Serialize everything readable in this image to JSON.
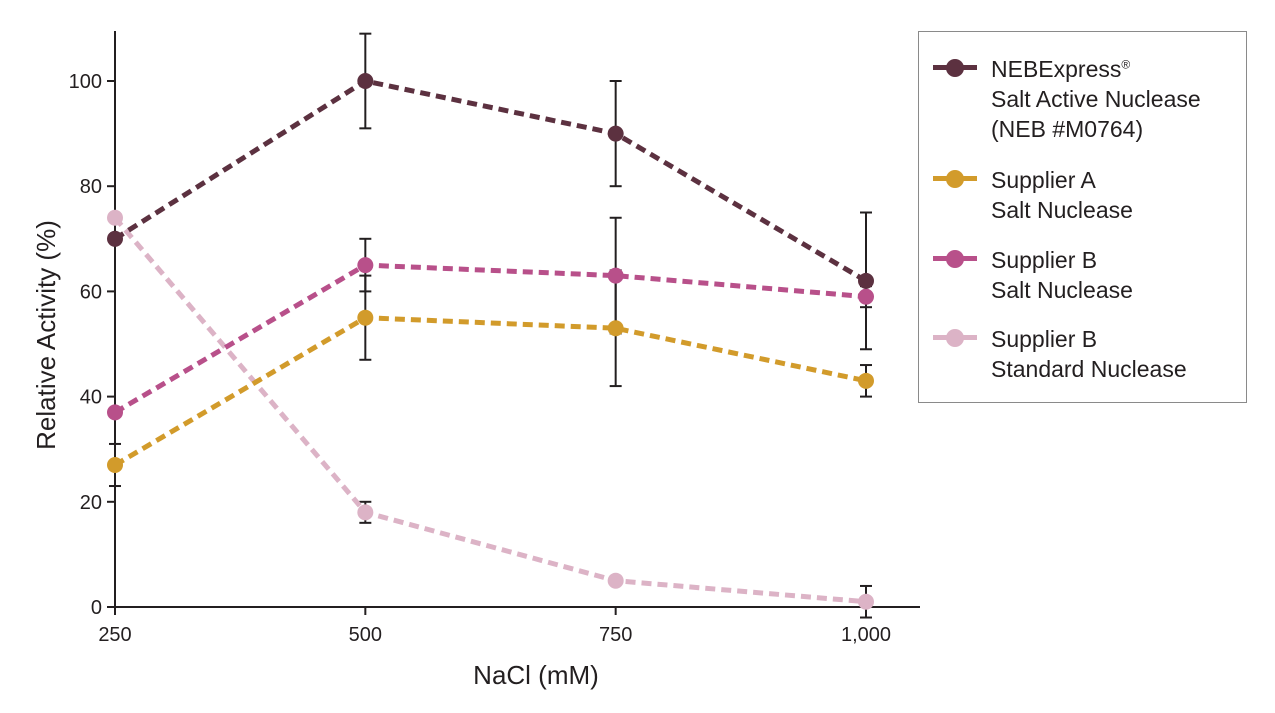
{
  "chart_data": {
    "type": "line",
    "xlabel": "NaCl (mM)",
    "ylabel": "Relative Activity (%)",
    "x": [
      250,
      500,
      750,
      1000
    ],
    "x_tick_labels": [
      "250",
      "500",
      "750",
      "1,000"
    ],
    "xlim": [
      250,
      1000
    ],
    "ylim": [
      0,
      110
    ],
    "y_ticks": [
      0,
      20,
      40,
      60,
      80,
      100
    ],
    "y_tick_labels": [
      "0",
      "20",
      "40",
      "60",
      "80",
      "100"
    ],
    "grid": false,
    "legend_position": "right",
    "series": [
      {
        "name_lines": [
          "NEBExpress",
          "Salt Active Nuclease",
          "(NEB #M0764)"
        ],
        "name_superscript": "®",
        "color": "#5c3140",
        "values": [
          70,
          100,
          90,
          62
        ],
        "error": [
          null,
          9,
          10,
          13
        ]
      },
      {
        "name_lines": [
          "Supplier A",
          "Salt Nuclease"
        ],
        "color": "#d29b2b",
        "values": [
          27,
          55,
          53,
          43
        ],
        "error": [
          4,
          8,
          11,
          3
        ]
      },
      {
        "name_lines": [
          "Supplier B",
          "Salt Nuclease"
        ],
        "color": "#b8508a",
        "values": [
          37,
          65,
          63,
          59
        ],
        "error": [
          null,
          5,
          11,
          2
        ]
      },
      {
        "name_lines": [
          "Supplier B",
          "Standard Nuclease"
        ],
        "color": "#dcb3c6",
        "values": [
          74,
          18,
          5,
          1
        ],
        "error": [
          null,
          2,
          null,
          3
        ]
      }
    ]
  }
}
